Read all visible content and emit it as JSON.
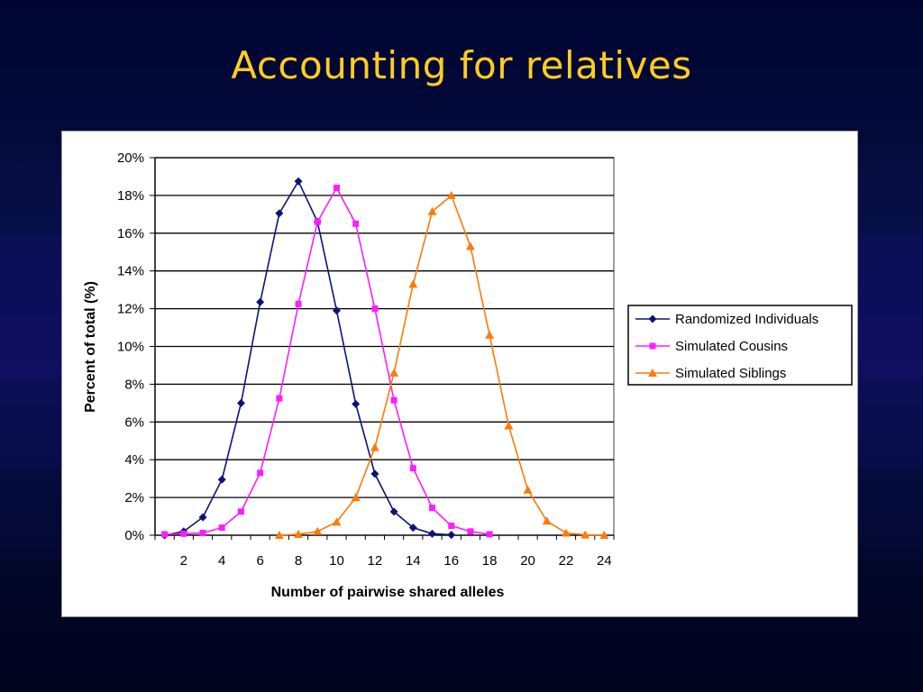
{
  "slide": {
    "title": "Accounting for relatives"
  },
  "chart_data": {
    "type": "line",
    "xlabel": "Number of pairwise shared alleles",
    "ylabel": "Percent of total (%)",
    "xlim": [
      0.5,
      24.5
    ],
    "ylim": [
      0,
      20
    ],
    "x_ticks": [
      2,
      4,
      6,
      8,
      10,
      12,
      14,
      16,
      18,
      20,
      22,
      24
    ],
    "y_ticks": [
      "0%",
      "2%",
      "4%",
      "6%",
      "8%",
      "10%",
      "12%",
      "14%",
      "16%",
      "18%",
      "20%"
    ],
    "grid": "horizontal",
    "legend_position": "right",
    "series": [
      {
        "name": "Randomized Individuals",
        "color": "#0a1478",
        "marker": "diamond",
        "x": [
          1,
          2,
          3,
          4,
          5,
          6,
          7,
          8,
          9,
          10,
          11,
          12,
          13,
          14,
          15,
          16
        ],
        "values": [
          0.0,
          0.2,
          0.95,
          2.95,
          7.0,
          12.35,
          17.05,
          18.75,
          16.6,
          11.9,
          6.95,
          3.25,
          1.25,
          0.4,
          0.08,
          0.02
        ]
      },
      {
        "name": "Simulated Cousins",
        "color": "#ff1cff",
        "marker": "square",
        "x": [
          1,
          2,
          3,
          4,
          5,
          6,
          7,
          8,
          9,
          10,
          11,
          12,
          13,
          14,
          15,
          16,
          17,
          18
        ],
        "values": [
          0.05,
          0.08,
          0.12,
          0.4,
          1.25,
          3.3,
          7.25,
          12.25,
          16.6,
          18.4,
          16.5,
          12.0,
          7.15,
          3.55,
          1.45,
          0.5,
          0.2,
          0.05
        ]
      },
      {
        "name": "Simulated Siblings",
        "color": "#ff7a0a",
        "marker": "triangle",
        "x": [
          7,
          8,
          9,
          10,
          11,
          12,
          13,
          14,
          15,
          16,
          17,
          18,
          19,
          20,
          21,
          22,
          23,
          24
        ],
        "values": [
          0.0,
          0.05,
          0.2,
          0.7,
          2.0,
          4.65,
          8.6,
          13.3,
          17.15,
          18.0,
          15.3,
          10.6,
          5.8,
          2.4,
          0.75,
          0.12,
          0.02,
          0.0
        ]
      }
    ]
  }
}
